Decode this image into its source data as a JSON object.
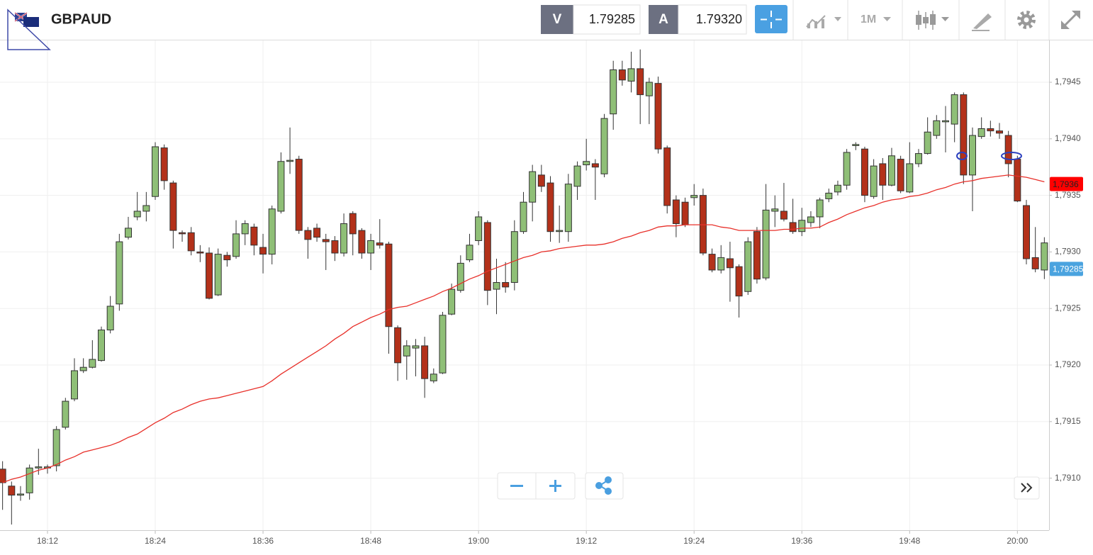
{
  "toolbar": {
    "symbol": "GBPAUD",
    "bid_label": "V",
    "bid": "1.79285",
    "ask_label": "A",
    "ask": "1.79320",
    "timeframe": "1M"
  },
  "chart_data": {
    "type": "candlestick",
    "up_color": "#8fbf77",
    "down_color": "#b3311a",
    "grid": true,
    "ylim": [
      1.79054,
      1.79487
    ],
    "yticks": [
      {
        "value": 1.791,
        "label": "1,7910"
      },
      {
        "value": 1.7915,
        "label": "1,7915"
      },
      {
        "value": 1.792,
        "label": "1,7920"
      },
      {
        "value": 1.7925,
        "label": "1,7925"
      },
      {
        "value": 1.793,
        "label": "1,7930"
      },
      {
        "value": 1.7935,
        "label": "1,7935"
      },
      {
        "value": 1.794,
        "label": "1,7940"
      },
      {
        "value": 1.7945,
        "label": "1,7945"
      }
    ],
    "categories": [
      null,
      null,
      null,
      null,
      null,
      "18:12",
      null,
      null,
      null,
      null,
      null,
      null,
      null,
      null,
      null,
      null,
      null,
      "18:24",
      null,
      null,
      null,
      null,
      null,
      null,
      null,
      null,
      null,
      null,
      null,
      "18:36",
      null,
      null,
      null,
      null,
      null,
      null,
      null,
      null,
      null,
      null,
      null,
      "18:48",
      null,
      null,
      null,
      null,
      null,
      null,
      null,
      null,
      null,
      null,
      null,
      "19:00",
      null,
      null,
      null,
      null,
      null,
      null,
      null,
      null,
      null,
      null,
      null,
      "19:12",
      null,
      null,
      null,
      null,
      null,
      null,
      null,
      null,
      null,
      null,
      null,
      "19:24",
      null,
      null,
      null,
      null,
      null,
      null,
      null,
      null,
      null,
      null,
      null,
      "19:36",
      null,
      null,
      null,
      null,
      null,
      null,
      null,
      null,
      null,
      null,
      null,
      "19:48",
      null,
      null,
      null,
      null,
      null,
      null,
      null,
      null,
      null,
      null,
      null,
      "20:00",
      null,
      null,
      null
    ],
    "open": [
      1.79108,
      1.79093,
      1.79085,
      1.79087,
      1.79109,
      1.79109,
      1.79111,
      1.79145,
      1.7917,
      1.79195,
      1.79198,
      1.79204,
      1.79231,
      1.79254,
      1.79313,
      1.79331,
      1.79336,
      1.79349,
      1.79392,
      1.79361,
      1.79317,
      1.79317,
      1.793,
      1.79299,
      1.79262,
      1.79297,
      1.79296,
      1.79316,
      1.79322,
      1.79304,
      1.79298,
      1.79336,
      1.7938,
      1.79382,
      1.79319,
      1.79321,
      1.79311,
      1.7931,
      1.79299,
      1.79334,
      1.79319,
      1.79299,
      1.79308,
      1.79307,
      1.79233,
      1.79208,
      1.79215,
      1.79217,
      1.79186,
      1.79193,
      1.79245,
      1.79266,
      1.79293,
      1.7931,
      1.79326,
      1.79267,
      1.79273,
      1.79273,
      1.79318,
      1.79344,
      1.79368,
      1.79361,
      1.79318,
      1.79318,
      1.79358,
      1.79377,
      1.79378,
      1.79369,
      1.79422,
      1.79461,
      1.79451,
      1.79462,
      1.79438,
      1.79449,
      1.79392,
      1.79346,
      1.79344,
      1.79348,
      1.7935,
      1.79298,
      1.79284,
      1.79294,
      1.79287,
      1.79265,
      1.79318,
      1.79277,
      1.79336,
      1.79336,
      1.79326,
      1.79318,
      1.79326,
      1.79331,
      1.79347,
      1.79353,
      1.79359,
      1.79394,
      1.79391,
      1.79349,
      1.79378,
      1.79359,
      1.79382,
      1.79353,
      1.79378,
      1.79387,
      1.79403,
      1.79415,
      1.79413,
      1.79439,
      1.79368,
      1.79402,
      1.79409,
      1.79407,
      1.79403,
      1.79382,
      1.79341,
      1.79295,
      1.79284
    ],
    "high": [
      1.79115,
      1.79097,
      1.79093,
      1.79112,
      1.79126,
      1.79112,
      1.79146,
      1.79171,
      1.79206,
      1.79206,
      1.79222,
      1.79234,
      1.79261,
      1.79316,
      1.79331,
      1.79353,
      1.79353,
      1.79397,
      1.79395,
      1.79363,
      1.79319,
      1.79322,
      1.79306,
      1.79304,
      1.79303,
      1.793,
      1.79328,
      1.79328,
      1.79325,
      1.79316,
      1.79341,
      1.79388,
      1.7941,
      1.79385,
      1.79322,
      1.79325,
      1.79316,
      1.79314,
      1.79334,
      1.79336,
      1.79321,
      1.79316,
      1.79329,
      1.79309,
      1.79235,
      1.79222,
      1.79223,
      1.79225,
      1.79197,
      1.79247,
      1.79272,
      1.79297,
      1.79316,
      1.79336,
      1.79328,
      1.79294,
      1.79291,
      1.79328,
      1.79353,
      1.79377,
      1.79377,
      1.79367,
      1.79341,
      1.79369,
      1.7938,
      1.794,
      1.79382,
      1.79422,
      1.79469,
      1.79469,
      1.79477,
      1.79479,
      1.79454,
      1.79455,
      1.79394,
      1.7935,
      1.79348,
      1.7936,
      1.79356,
      1.79303,
      1.79306,
      1.79309,
      1.79289,
      1.79313,
      1.79322,
      1.7936,
      1.7935,
      1.79361,
      1.79347,
      1.79339,
      1.79336,
      1.79348,
      1.79356,
      1.79363,
      1.79391,
      1.79397,
      1.79393,
      1.79382,
      1.79383,
      1.79392,
      1.79385,
      1.79397,
      1.79391,
      1.79419,
      1.79421,
      1.79429,
      1.79441,
      1.79441,
      1.7941,
      1.79419,
      1.79416,
      1.79414,
      1.79407,
      1.79385,
      1.79346,
      1.79322,
      1.79313
    ],
    "low": [
      1.79072,
      1.79059,
      1.7908,
      1.79081,
      1.79103,
      1.79104,
      1.79106,
      1.79143,
      1.79168,
      1.79193,
      1.79197,
      1.79203,
      1.79228,
      1.79248,
      1.79311,
      1.79328,
      1.79327,
      1.79346,
      1.79355,
      1.79303,
      1.79309,
      1.79297,
      1.79291,
      1.79258,
      1.79261,
      1.79287,
      1.79294,
      1.79306,
      1.79297,
      1.79281,
      1.79289,
      1.79334,
      1.79369,
      1.79316,
      1.79294,
      1.79309,
      1.79284,
      1.79292,
      1.79296,
      1.79297,
      1.79294,
      1.79284,
      1.79303,
      1.7921,
      1.79186,
      1.79187,
      1.7919,
      1.79171,
      1.79184,
      1.79192,
      1.79244,
      1.79264,
      1.79291,
      1.79306,
      1.79253,
      1.79245,
      1.79264,
      1.79266,
      1.79316,
      1.79327,
      1.79353,
      1.79309,
      1.79308,
      1.79309,
      1.79346,
      1.79372,
      1.79346,
      1.79366,
      1.79408,
      1.79447,
      1.79441,
      1.79413,
      1.79413,
      1.79387,
      1.79334,
      1.79313,
      1.79322,
      1.79341,
      1.79297,
      1.79282,
      1.79281,
      1.79256,
      1.79242,
      1.79262,
      1.79272,
      1.79275,
      1.79322,
      1.79327,
      1.79316,
      1.79314,
      1.79322,
      1.79321,
      1.79344,
      1.7935,
      1.79355,
      1.7939,
      1.79344,
      1.79347,
      1.79346,
      1.79358,
      1.79352,
      1.79352,
      1.79375,
      1.79386,
      1.794,
      1.79388,
      1.79397,
      1.7936,
      1.79336,
      1.794,
      1.79402,
      1.794,
      1.79366,
      1.79344,
      1.79289,
      1.79282,
      1.79276
    ],
    "close": [
      1.79096,
      1.79085,
      1.79086,
      1.79109,
      1.7911,
      1.7911,
      1.79143,
      1.79168,
      1.79195,
      1.79198,
      1.79205,
      1.79231,
      1.79252,
      1.79309,
      1.79321,
      1.79336,
      1.79341,
      1.79393,
      1.79363,
      1.79319,
      1.79316,
      1.79301,
      1.79299,
      1.79259,
      1.79298,
      1.79293,
      1.79316,
      1.79325,
      1.79306,
      1.79298,
      1.79338,
      1.7938,
      1.79381,
      1.79319,
      1.79311,
      1.79313,
      1.79309,
      1.79299,
      1.79325,
      1.79316,
      1.79299,
      1.7931,
      1.79306,
      1.79234,
      1.79202,
      1.79217,
      1.79217,
      1.79188,
      1.79192,
      1.79244,
      1.79267,
      1.7929,
      1.79306,
      1.79331,
      1.79266,
      1.79273,
      1.79269,
      1.79318,
      1.79344,
      1.79371,
      1.79358,
      1.79318,
      1.79319,
      1.7936,
      1.79376,
      1.7938,
      1.79375,
      1.79418,
      1.79461,
      1.79452,
      1.79462,
      1.79439,
      1.7945,
      1.79391,
      1.79341,
      1.79325,
      1.79324,
      1.7935,
      1.79299,
      1.79284,
      1.79295,
      1.79286,
      1.79261,
      1.79309,
      1.79276,
      1.79337,
      1.79338,
      1.79329,
      1.79318,
      1.79328,
      1.79331,
      1.79346,
      1.79352,
      1.79359,
      1.79388,
      1.79395,
      1.7935,
      1.79376,
      1.79359,
      1.79385,
      1.79354,
      1.79378,
      1.79387,
      1.79406,
      1.79416,
      1.79416,
      1.79439,
      1.79368,
      1.79403,
      1.79409,
      1.79407,
      1.79405,
      1.79378,
      1.79345,
      1.79294,
      1.79285,
      1.79308
    ],
    "moving_average": {
      "color": "#e8302a",
      "values": [
        1.79096,
        1.79099,
        1.79101,
        1.79104,
        1.79107,
        1.79109,
        1.79112,
        1.79116,
        1.79119,
        1.79123,
        1.79125,
        1.79127,
        1.79129,
        1.79132,
        1.79136,
        1.79139,
        1.79144,
        1.79149,
        1.79153,
        1.79158,
        1.79161,
        1.79165,
        1.79168,
        1.7917,
        1.79171,
        1.79173,
        1.79175,
        1.79177,
        1.79179,
        1.79181,
        1.79186,
        1.79192,
        1.79197,
        1.79202,
        1.79207,
        1.79212,
        1.79217,
        1.79223,
        1.79228,
        1.79234,
        1.79238,
        1.79242,
        1.79245,
        1.79249,
        1.79251,
        1.79252,
        1.79255,
        1.79258,
        1.79261,
        1.79265,
        1.79268,
        1.79272,
        1.79276,
        1.79279,
        1.79283,
        1.79286,
        1.79289,
        1.79292,
        1.79295,
        1.79297,
        1.793,
        1.79301,
        1.79303,
        1.79304,
        1.79305,
        1.79306,
        1.79306,
        1.79307,
        1.79309,
        1.79312,
        1.79314,
        1.79317,
        1.79319,
        1.79322,
        1.79323,
        1.79323,
        1.79324,
        1.79324,
        1.79324,
        1.79324,
        1.79322,
        1.79321,
        1.79319,
        1.79319,
        1.79319,
        1.79319,
        1.79319,
        1.7932,
        1.7932,
        1.79321,
        1.79321,
        1.79322,
        1.79326,
        1.79329,
        1.79333,
        1.79336,
        1.79339,
        1.79341,
        1.79344,
        1.79346,
        1.79347,
        1.79349,
        1.7935,
        1.79352,
        1.79355,
        1.79357,
        1.7936,
        1.79362,
        1.79363,
        1.79365,
        1.79366,
        1.79367,
        1.79368,
        1.79367,
        1.79366,
        1.79364,
        1.79362
      ]
    },
    "markers": [
      {
        "value": 1.7936,
        "label": "1,7936",
        "color": "#ff0000",
        "text_color": "#222222"
      },
      {
        "value": 1.79285,
        "label": "1,79285",
        "color": "#4aa3df",
        "text_color": "#ffffff"
      }
    ]
  }
}
